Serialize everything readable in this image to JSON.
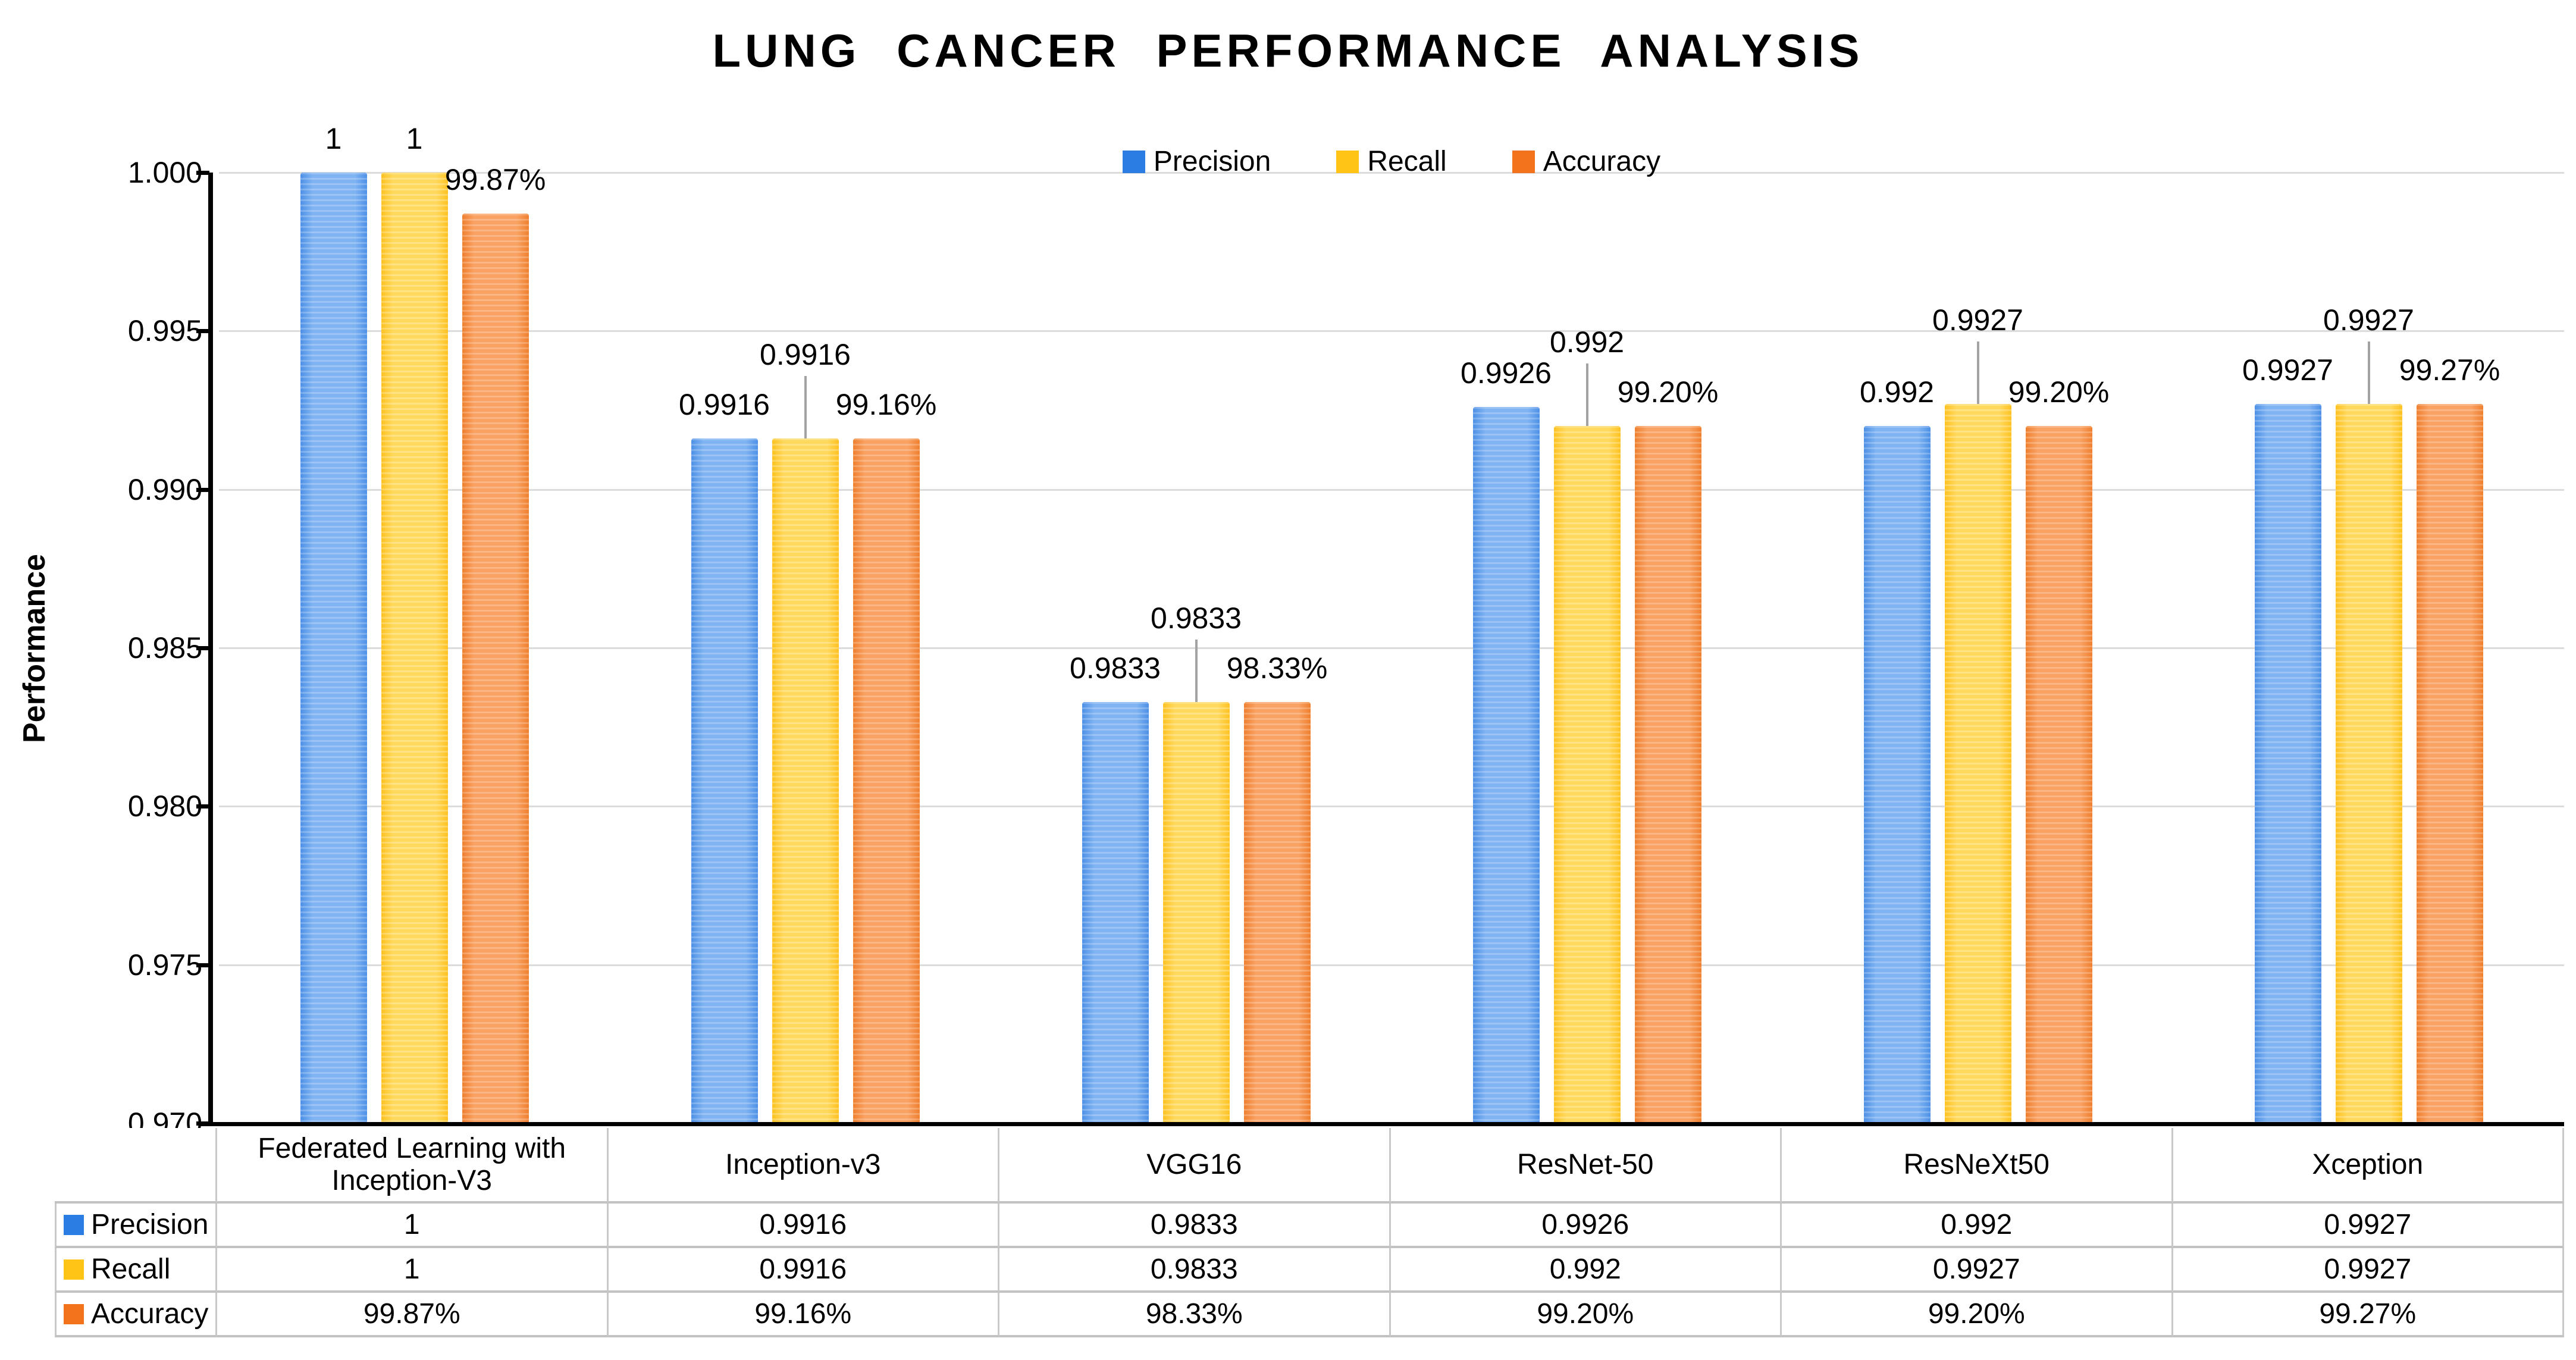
{
  "chart_data": {
    "type": "bar",
    "title": "LUNG CANCER PERFORMANCE ANALYSIS",
    "ylabel": "Performance",
    "ylim": [
      0.97,
      1.0
    ],
    "ytick_step": 0.005,
    "yticks": [
      "1.000",
      "0.995",
      "0.990",
      "0.985",
      "0.980",
      "0.975",
      "0.970"
    ],
    "grid": true,
    "legend_position": "top-center",
    "categories": [
      "Federated Learning with Inception-V3",
      "Inception-v3",
      "VGG16",
      "ResNet-50",
      "ResNeXt50",
      "Xception"
    ],
    "series": [
      {
        "name": "Precision",
        "key_color": "#2b7de4",
        "bar_edge": "#4d90e6",
        "bar_mid": "#7fb3f2",
        "values": [
          1,
          0.9916,
          0.9833,
          0.9926,
          0.992,
          0.9927
        ],
        "labels": [
          "1",
          "0.9916",
          "0.9833",
          "0.9926",
          "0.992",
          "0.9927"
        ],
        "raised_labels": [
          false,
          false,
          false,
          false,
          false,
          false
        ]
      },
      {
        "name": "Recall",
        "key_color": "#ffc415",
        "bar_edge": "#ffc220",
        "bar_mid": "#ffd95e",
        "values": [
          1,
          0.9916,
          0.9833,
          0.992,
          0.9927,
          0.9927
        ],
        "labels": [
          "1",
          "0.9916",
          "0.9833",
          "0.992",
          "0.9927",
          "0.9927"
        ],
        "raised_labels": [
          false,
          true,
          true,
          true,
          true,
          true
        ]
      },
      {
        "name": "Accuracy",
        "key_color": "#f2731c",
        "bar_edge": "#ef7f2e",
        "bar_mid": "#f9a263",
        "values": [
          0.9987,
          0.9916,
          0.9833,
          0.992,
          0.992,
          0.9927
        ],
        "labels": [
          "99.87%",
          "99.16%",
          "98.33%",
          "99.20%",
          "99.20%",
          "99.27%"
        ],
        "raised_labels": [
          false,
          false,
          false,
          false,
          false,
          false
        ]
      }
    ],
    "leader_line_color": "#a3a3a3",
    "gridline_color": "#dcdcdc"
  }
}
